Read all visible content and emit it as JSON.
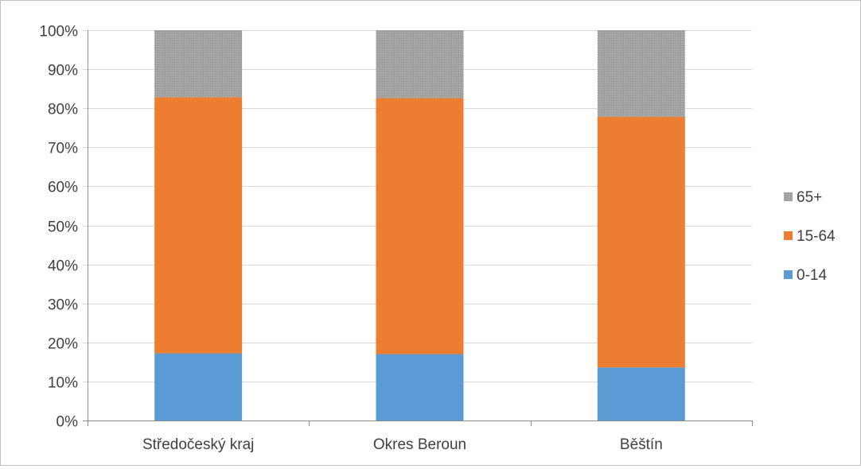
{
  "chart_data": {
    "type": "bar",
    "stacked": true,
    "percent_stacked": true,
    "categories": [
      "Středočeský kraj",
      "Okres Beroun",
      "Běštín"
    ],
    "series": [
      {
        "name": "0-14",
        "color": "#5b9bd5",
        "values": [
          17.2,
          17.0,
          13.6
        ]
      },
      {
        "name": "15-64",
        "color": "#ed7d31",
        "values": [
          65.6,
          65.6,
          64.2
        ]
      },
      {
        "name": "65+",
        "color": "#a5a5a5",
        "values": [
          17.2,
          17.4,
          22.2
        ]
      }
    ],
    "y_ticks": [
      "0%",
      "10%",
      "20%",
      "30%",
      "40%",
      "50%",
      "60%",
      "70%",
      "80%",
      "90%",
      "100%"
    ],
    "ylim": [
      0,
      100
    ],
    "grid": true,
    "legend": {
      "position": "right",
      "order": [
        "65+",
        "15-64",
        "0-14"
      ]
    },
    "title": "",
    "xlabel": "",
    "ylabel": ""
  }
}
